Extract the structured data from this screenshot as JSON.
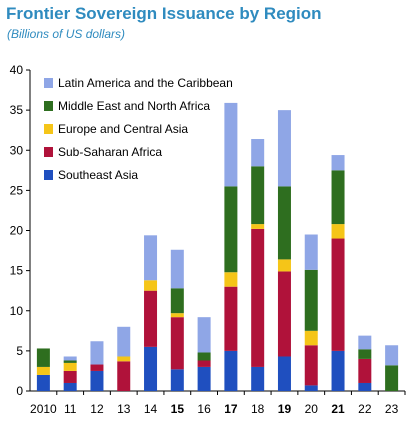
{
  "title": "Frontier Sovereign Issuance by Region",
  "subtitle": "(Billions of US dollars)",
  "chart_data": {
    "type": "bar",
    "stacked": true,
    "categories": [
      "2010",
      "11",
      "12",
      "13",
      "14",
      "15",
      "16",
      "17",
      "18",
      "19",
      "20",
      "21",
      "22",
      "23"
    ],
    "bold_categories": [
      "15",
      "17",
      "19",
      "21"
    ],
    "ylim": [
      0,
      40
    ],
    "yticks": [
      0,
      5,
      10,
      15,
      20,
      25,
      30,
      35,
      40
    ],
    "legend_position": "top-left",
    "series": [
      {
        "name": "Southeast Asia",
        "color": "#1f4fbf",
        "values": [
          2.0,
          1.0,
          2.5,
          0,
          5.5,
          2.7,
          3.0,
          5.0,
          3.0,
          4.3,
          0.7,
          5.0,
          1.0,
          0
        ]
      },
      {
        "name": "Sub-Saharan Africa",
        "color": "#b0123a",
        "values": [
          0,
          1.5,
          0.8,
          3.7,
          7.0,
          6.5,
          0.8,
          8.0,
          17.2,
          10.6,
          5.0,
          14.0,
          3.0,
          0
        ]
      },
      {
        "name": "Europe and Central Asia",
        "color": "#f5c518",
        "values": [
          1.0,
          1.0,
          0,
          0.6,
          1.3,
          0.5,
          0,
          1.8,
          0.6,
          1.5,
          1.8,
          1.8,
          0,
          0
        ]
      },
      {
        "name": "Middle East and North Africa",
        "color": "#2e6e1f",
        "values": [
          2.3,
          0.3,
          0,
          0,
          0,
          3.1,
          1.0,
          10.7,
          7.2,
          9.1,
          7.6,
          6.7,
          1.2,
          3.2
        ]
      },
      {
        "name": "Latin America and the Caribbean",
        "color": "#8fa6e6",
        "values": [
          0,
          0.5,
          2.9,
          3.7,
          5.6,
          4.8,
          4.4,
          10.4,
          3.4,
          9.5,
          4.4,
          1.9,
          1.7,
          2.5
        ]
      }
    ],
    "legend_order": [
      "Latin America and the Caribbean",
      "Middle East and North Africa",
      "Europe and Central Asia",
      "Sub-Saharan Africa",
      "Southeast Asia"
    ]
  }
}
